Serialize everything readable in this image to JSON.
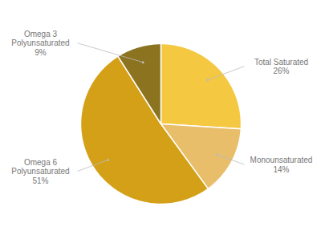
{
  "chart_data": {
    "type": "pie",
    "categories": [
      "Total Saturated",
      "Monounsaturated",
      "Omega 6\nPolyunsaturated",
      "Omega 3\nPolyunsaturated"
    ],
    "values": [
      26,
      14,
      51,
      9
    ],
    "value_labels": [
      "26%",
      "14%",
      "51%",
      "9%"
    ],
    "colors": [
      "#F5C842",
      "#E8BE6A",
      "#D4A017",
      "#8B7320"
    ],
    "data_labels": true
  }
}
